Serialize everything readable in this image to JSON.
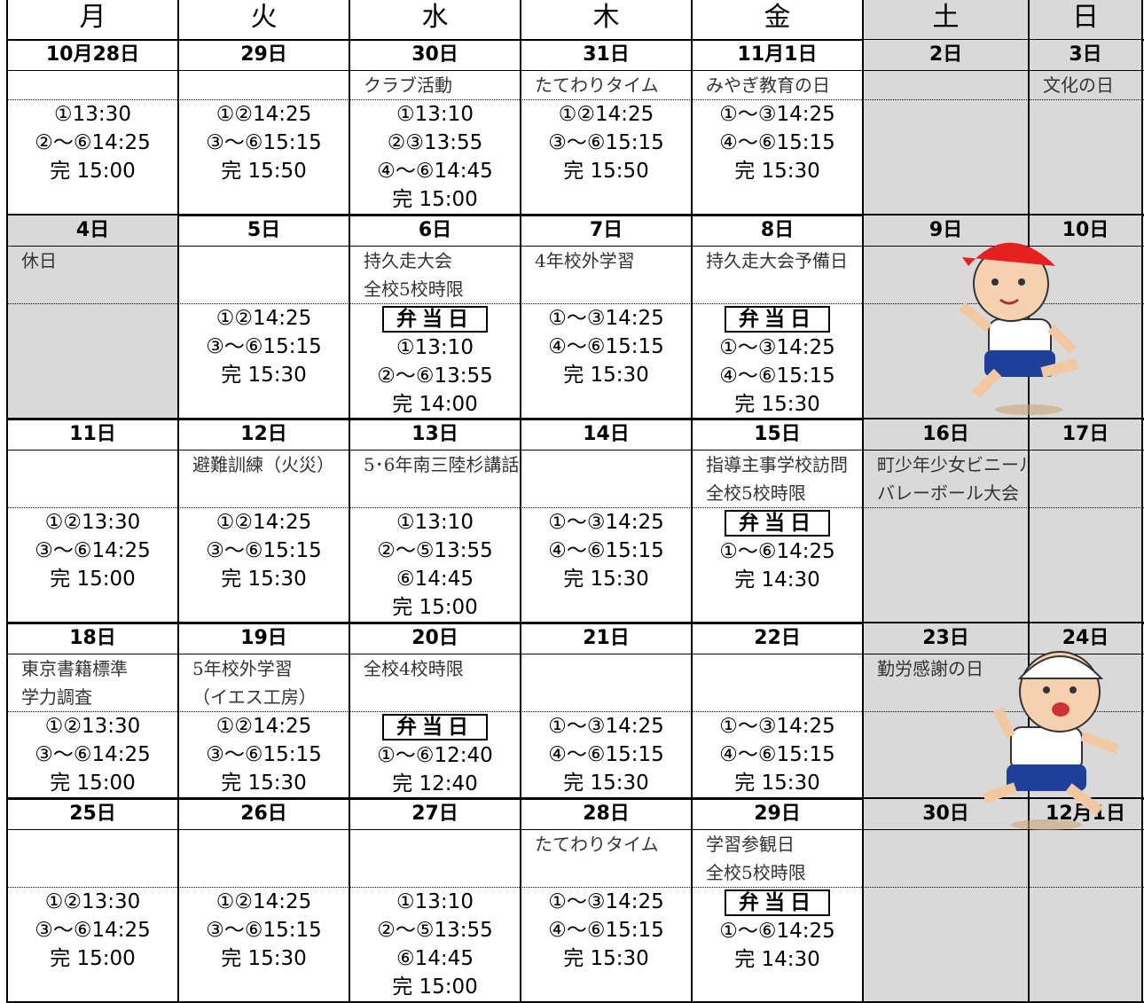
{
  "header": {
    "days": [
      "月",
      "火",
      "水",
      "木",
      "金",
      "土",
      "日"
    ]
  },
  "weeks": [
    {
      "days": [
        {
          "date": "10月28日",
          "events": [],
          "times": [
            "①13:30",
            "②～⑥14:25",
            "完 15:00"
          ]
        },
        {
          "date": "29日",
          "events": [],
          "times": [
            "①②14:25",
            "③～⑥15:15",
            "完 15:50"
          ]
        },
        {
          "date": "30日",
          "events": [
            "クラブ活動"
          ],
          "times": [
            "①13:10",
            "②③13:55",
            "④～⑥14:45",
            "完 15:00"
          ]
        },
        {
          "date": "31日",
          "events": [
            "たてわりタイム"
          ],
          "times": [
            "①②14:25",
            "③～⑥15:15",
            "完 15:50"
          ]
        },
        {
          "date": "11月1日",
          "events": [
            "みやぎ教育の日"
          ],
          "times": [
            "①～③14:25",
            "④～⑥15:15",
            "完 15:30"
          ]
        },
        {
          "date": "2日",
          "events": [],
          "times": []
        },
        {
          "date": "3日",
          "events": [
            "文化の日"
          ],
          "times": []
        }
      ]
    },
    {
      "days": [
        {
          "date": "4日",
          "events": [
            "休日"
          ],
          "times": [],
          "holiday": true
        },
        {
          "date": "5日",
          "events": [],
          "times": [
            "①②14:25",
            "③～⑥15:15",
            "完 15:30"
          ]
        },
        {
          "date": "6日",
          "events": [
            "持久走大会",
            "全校5校時限"
          ],
          "bento": "弁当日",
          "times": [
            "①13:10",
            "②～⑥13:55",
            "完 14:00"
          ]
        },
        {
          "date": "7日",
          "events": [
            "4年校外学習"
          ],
          "times": [
            "①～③14:25",
            "④～⑥15:15",
            "完 15:30"
          ]
        },
        {
          "date": "8日",
          "events": [
            "持久走大会予備日"
          ],
          "bento": "弁当日",
          "times": [
            "①～③14:25",
            "④～⑥15:15",
            "完 15:30"
          ]
        },
        {
          "date": "9日",
          "events": [],
          "times": []
        },
        {
          "date": "10日",
          "events": [],
          "times": []
        }
      ]
    },
    {
      "days": [
        {
          "date": "11日",
          "events": [],
          "times": [
            "①②13:30",
            "③～⑥14:25",
            "完 15:00"
          ]
        },
        {
          "date": "12日",
          "events": [
            "避難訓練（火災）"
          ],
          "times": [
            "①②14:25",
            "③～⑥15:15",
            "完 15:30"
          ]
        },
        {
          "date": "13日",
          "events": [
            "5･6年南三陸杉講話"
          ],
          "times": [
            "①13:10",
            "②～⑤13:55",
            "⑥14:45",
            "完 15:00"
          ]
        },
        {
          "date": "14日",
          "events": [],
          "times": [
            "①～③14:25",
            "④～⑥15:15",
            "完 15:30"
          ]
        },
        {
          "date": "15日",
          "events": [
            "指導主事学校訪問",
            "全校5校時限"
          ],
          "bento": "弁当日",
          "times": [
            "①～⑥14:25",
            "完 14:30"
          ]
        },
        {
          "date": "16日",
          "events": [
            "町少年少女ビニール",
            "バレーボール大会"
          ],
          "times": []
        },
        {
          "date": "17日",
          "events": [],
          "times": []
        }
      ]
    },
    {
      "days": [
        {
          "date": "18日",
          "events": [
            "東京書籍標準",
            "学力調査"
          ],
          "times": [
            "①②13:30",
            "③～⑥14:25",
            "完 15:00"
          ]
        },
        {
          "date": "19日",
          "events": [
            "5年校外学習",
            "（イエス工房）"
          ],
          "times": [
            "①②14:25",
            "③～⑥15:15",
            "完 15:30"
          ]
        },
        {
          "date": "20日",
          "events": [
            "全校4校時限"
          ],
          "bento": "弁当日",
          "times": [
            "①～⑥12:40",
            "完 12:40"
          ]
        },
        {
          "date": "21日",
          "events": [],
          "times": [
            "①～③14:25",
            "④～⑥15:15",
            "完 15:30"
          ]
        },
        {
          "date": "22日",
          "events": [],
          "times": [
            "①～③14:25",
            "④～⑥15:15",
            "完 15:30"
          ]
        },
        {
          "date": "23日",
          "events": [
            "勤労感謝の日"
          ],
          "times": []
        },
        {
          "date": "24日",
          "events": [],
          "times": []
        }
      ]
    },
    {
      "days": [
        {
          "date": "25日",
          "events": [],
          "times": [
            "①②13:30",
            "③～⑥14:25",
            "完 15:00"
          ]
        },
        {
          "date": "26日",
          "events": [],
          "times": [
            "①②14:25",
            "③～⑥15:15",
            "完 15:30"
          ]
        },
        {
          "date": "27日",
          "events": [],
          "times": [
            "①13:10",
            "②～⑤13:55",
            "⑥14:45",
            "完 15:00"
          ]
        },
        {
          "date": "28日",
          "events": [
            "たてわりタイム"
          ],
          "times": [
            "①～③14:25",
            "④～⑥15:15",
            "完 15:30"
          ]
        },
        {
          "date": "29日",
          "events": [
            "学習参観日",
            "全校5校時限"
          ],
          "bento": "弁当日",
          "times": [
            "①～⑥14:25",
            "完 14:30"
          ]
        },
        {
          "date": "30日",
          "events": [],
          "times": []
        },
        {
          "date": "12月1日",
          "events": [],
          "times": []
        }
      ]
    }
  ]
}
